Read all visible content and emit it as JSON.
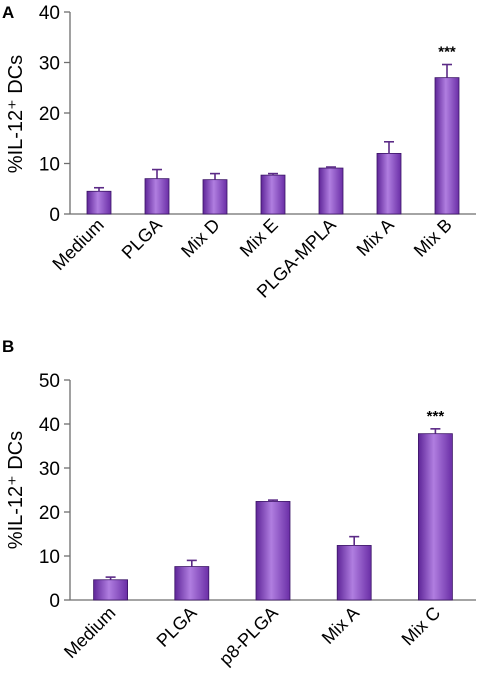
{
  "colors": {
    "bar": "#8a3fc8",
    "bar_light": "#b07ee0",
    "bar_dark": "#5e2598",
    "axis": "#6e6e6e"
  },
  "chart_data": [
    {
      "panel": "A",
      "type": "bar",
      "ylabel": "%IL-12⁺ DCs",
      "ylim": [
        0,
        40
      ],
      "yticks": [
        0,
        10,
        20,
        30,
        40
      ],
      "categories": [
        "Medium",
        "PLGA",
        "Mix D",
        "Mix E",
        "PLGA-MPLA",
        "Mix A",
        "Mix B"
      ],
      "values": [
        4.5,
        7.0,
        6.8,
        7.7,
        9.1,
        12.0,
        27.0
      ],
      "errors": [
        0.7,
        1.8,
        1.2,
        0.3,
        0.2,
        2.3,
        2.6
      ],
      "annotations": [
        {
          "category": "Mix B",
          "text": "***"
        }
      ]
    },
    {
      "panel": "B",
      "type": "bar",
      "ylabel": "%IL-12⁺ DCs",
      "ylim": [
        0,
        50
      ],
      "yticks": [
        0,
        10,
        20,
        30,
        40,
        50
      ],
      "categories": [
        "Medium",
        "PLGA",
        "p8-PLGA",
        "Mix A",
        "Mix C"
      ],
      "values": [
        4.6,
        7.6,
        22.4,
        12.4,
        37.8
      ],
      "errors": [
        0.6,
        1.4,
        0.3,
        2.0,
        1.1
      ],
      "annotations": [
        {
          "category": "Mix C",
          "text": "***"
        }
      ]
    }
  ]
}
